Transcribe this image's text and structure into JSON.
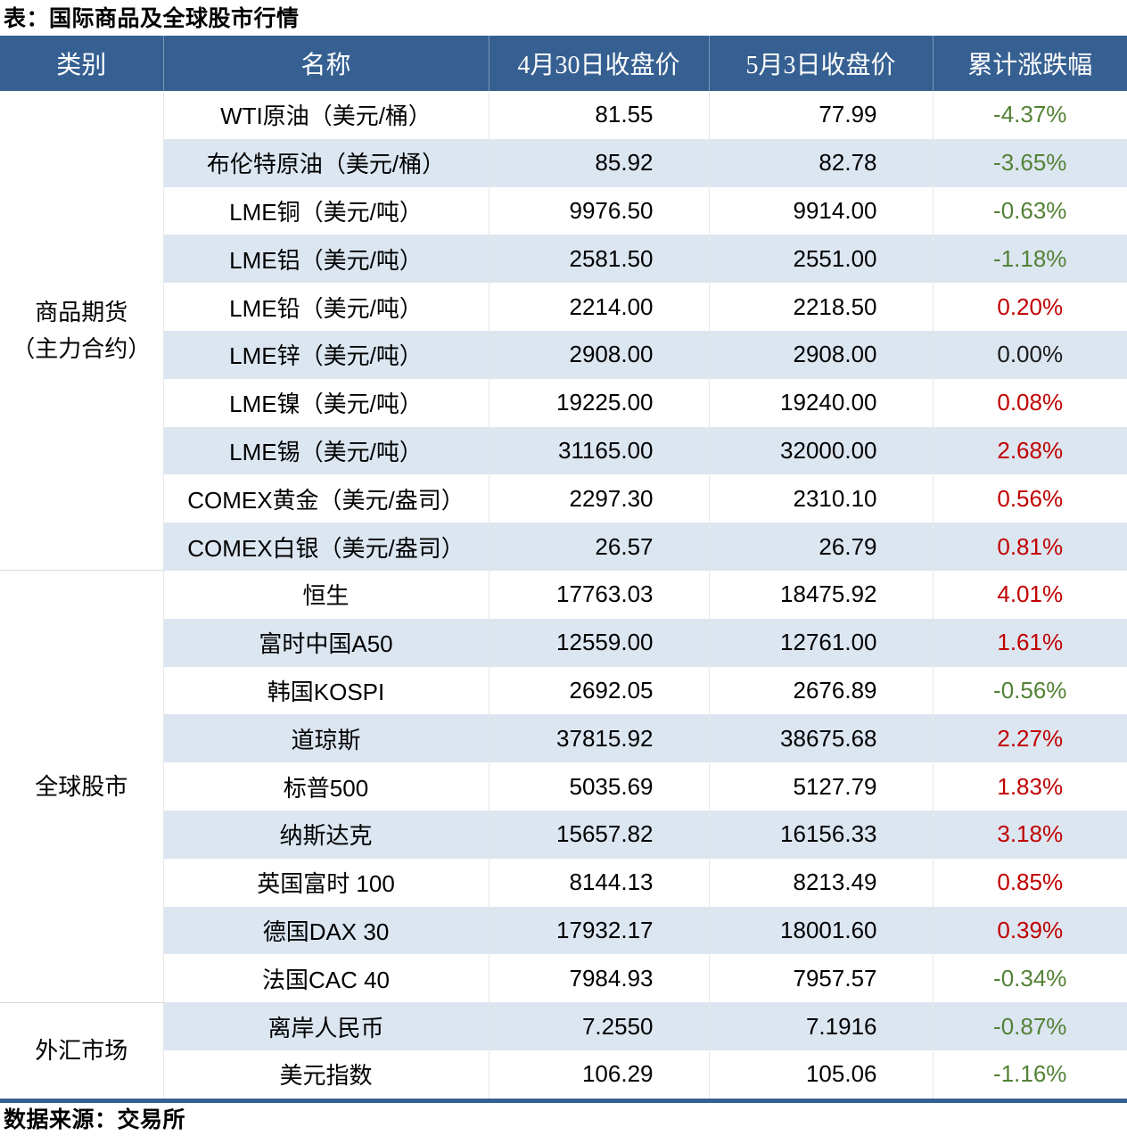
{
  "title": "表：国际商品及全球股市行情",
  "source_note": "数据来源：交易所",
  "colors": {
    "header_bg": "#366092",
    "stripe": "#dce6f1",
    "up_red": "#c00000",
    "down_green": "#538135",
    "flat_black": "#1a1a1a",
    "rule_blue": "#366092"
  },
  "table": {
    "headers": [
      "类别",
      "名称",
      "4月30日收盘价",
      "5月3日收盘价",
      "累计涨跌幅"
    ],
    "groups": [
      {
        "category_lines": [
          "商品期货",
          "（主力合约）"
        ],
        "rows": [
          {
            "name": "WTI原油（美元/桶）",
            "apr30": "81.55",
            "may3": "77.99",
            "change": "-4.37%",
            "direction": "down"
          },
          {
            "name": "布伦特原油（美元/桶）",
            "apr30": "85.92",
            "may3": "82.78",
            "change": "-3.65%",
            "direction": "down"
          },
          {
            "name": "LME铜（美元/吨）",
            "apr30": "9976.50",
            "may3": "9914.00",
            "change": "-0.63%",
            "direction": "down"
          },
          {
            "name": "LME铝（美元/吨）",
            "apr30": "2581.50",
            "may3": "2551.00",
            "change": "-1.18%",
            "direction": "down"
          },
          {
            "name": "LME铅（美元/吨）",
            "apr30": "2214.00",
            "may3": "2218.50",
            "change": "0.20%",
            "direction": "up"
          },
          {
            "name": "LME锌（美元/吨）",
            "apr30": "2908.00",
            "may3": "2908.00",
            "change": "0.00%",
            "direction": "flat"
          },
          {
            "name": "LME镍（美元/吨）",
            "apr30": "19225.00",
            "may3": "19240.00",
            "change": "0.08%",
            "direction": "up"
          },
          {
            "name": "LME锡（美元/吨）",
            "apr30": "31165.00",
            "may3": "32000.00",
            "change": "2.68%",
            "direction": "up"
          },
          {
            "name": "COMEX黄金（美元/盎司）",
            "apr30": "2297.30",
            "may3": "2310.10",
            "change": "0.56%",
            "direction": "up"
          },
          {
            "name": "COMEX白银（美元/盎司）",
            "apr30": "26.57",
            "may3": "26.79",
            "change": "0.81%",
            "direction": "up"
          }
        ]
      },
      {
        "category_lines": [
          "全球股市"
        ],
        "rows": [
          {
            "name": "恒生",
            "apr30": "17763.03",
            "may3": "18475.92",
            "change": "4.01%",
            "direction": "up"
          },
          {
            "name": "富时中国A50",
            "apr30": "12559.00",
            "may3": "12761.00",
            "change": "1.61%",
            "direction": "up"
          },
          {
            "name": "韩国KOSPI",
            "apr30": "2692.05",
            "may3": "2676.89",
            "change": "-0.56%",
            "direction": "down"
          },
          {
            "name": "道琼斯",
            "apr30": "37815.92",
            "may3": "38675.68",
            "change": "2.27%",
            "direction": "up"
          },
          {
            "name": "标普500",
            "apr30": "5035.69",
            "may3": "5127.79",
            "change": "1.83%",
            "direction": "up"
          },
          {
            "name": "纳斯达克",
            "apr30": "15657.82",
            "may3": "16156.33",
            "change": "3.18%",
            "direction": "up"
          },
          {
            "name": "英国富时 100",
            "apr30": "8144.13",
            "may3": "8213.49",
            "change": "0.85%",
            "direction": "up"
          },
          {
            "name": "德国DAX 30",
            "apr30": "17932.17",
            "may3": "18001.60",
            "change": "0.39%",
            "direction": "up"
          },
          {
            "name": "法国CAC 40",
            "apr30": "7984.93",
            "may3": "7957.57",
            "change": "-0.34%",
            "direction": "down"
          }
        ]
      },
      {
        "category_lines": [
          "外汇市场"
        ],
        "rows": [
          {
            "name": "离岸人民币",
            "apr30": "7.2550",
            "may3": "7.1916",
            "change": "-0.87%",
            "direction": "down"
          },
          {
            "name": "美元指数",
            "apr30": "106.29",
            "may3": "105.06",
            "change": "-1.16%",
            "direction": "down"
          }
        ]
      }
    ]
  }
}
